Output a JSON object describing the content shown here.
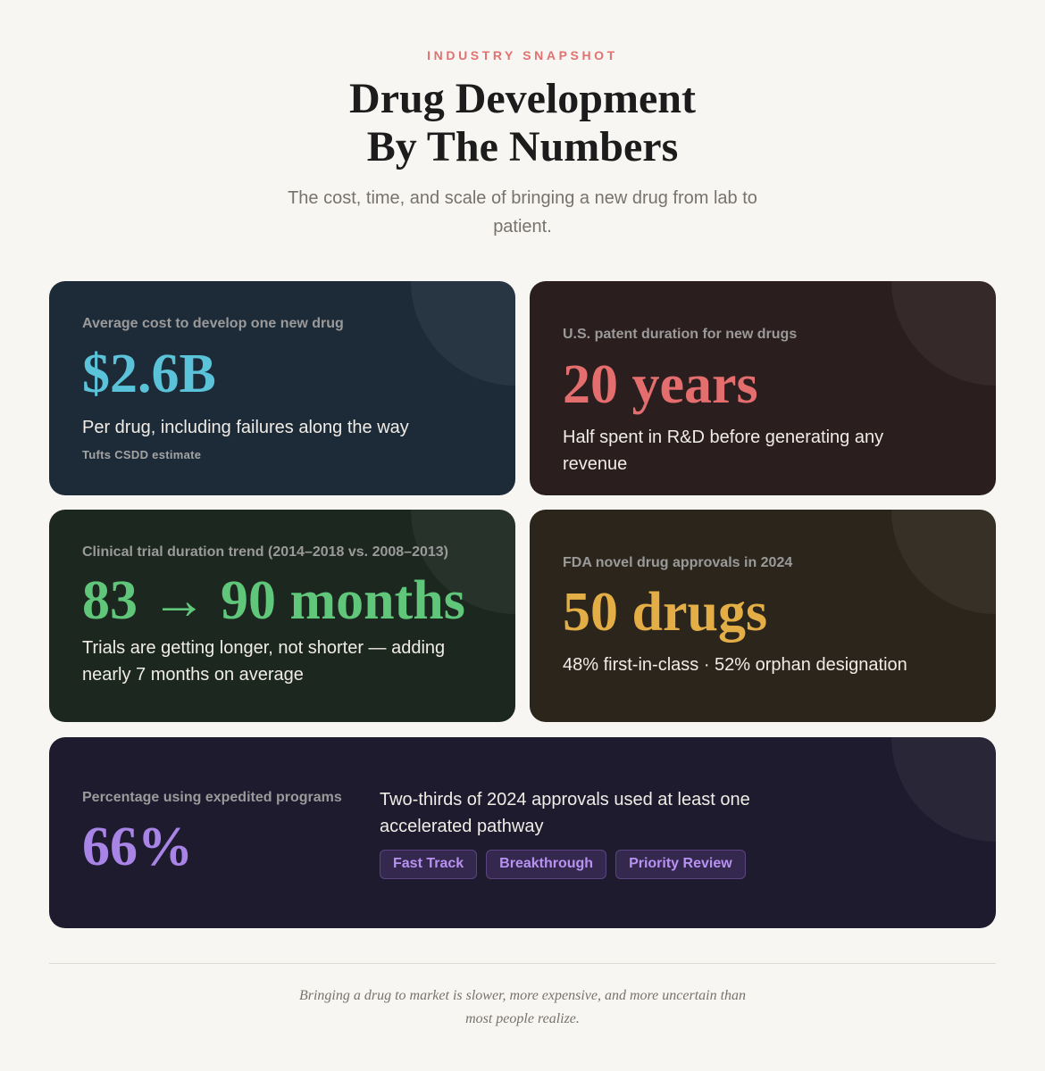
{
  "header": {
    "eyebrow": "INDUSTRY SNAPSHOT",
    "title_line1": "Drug Development",
    "title_line2": "By The Numbers",
    "subtitle": "The cost, time, and scale of bringing a new drug from lab to patient."
  },
  "cards": {
    "cost": {
      "label": "Average cost to develop one new drug",
      "value": "$2.6B",
      "desc": "Per drug, including failures along the way",
      "note": "Tufts CSDD estimate",
      "accent": "#5bc3d9",
      "bg": "#1d2b38"
    },
    "patent": {
      "label": "U.S. patent duration for new drugs",
      "value": "20 years",
      "desc": "Half spent in R&D before generating any revenue",
      "accent": "#e46e6e",
      "bg": "#2b1e1f"
    },
    "trial": {
      "label": "Clinical trial duration trend (2014–2018 vs. 2008–2013)",
      "value": "83 → 90 months",
      "desc": "Trials are getting longer, not shorter — adding nearly 7 months on average",
      "accent": "#5fc67a",
      "bg": "#1c2720"
    },
    "fda": {
      "label": "FDA novel drug approvals in 2024",
      "value": "50 drugs",
      "desc": "48% first-in-class · 52% orphan designation",
      "accent": "#e3ae45",
      "bg": "#2c251c"
    },
    "expedited": {
      "label": "Percentage using expedited programs",
      "value": "66%",
      "desc": "Two-thirds of 2024 approvals used at least one accelerated pathway",
      "tags": [
        "Fast Track",
        "Breakthrough",
        "Priority Review"
      ],
      "accent": "#a884e6",
      "bg": "#1e1b2e"
    }
  },
  "footer": {
    "text": "Bringing a drug to market is slower, more expensive, and more uncertain than most people realize."
  }
}
